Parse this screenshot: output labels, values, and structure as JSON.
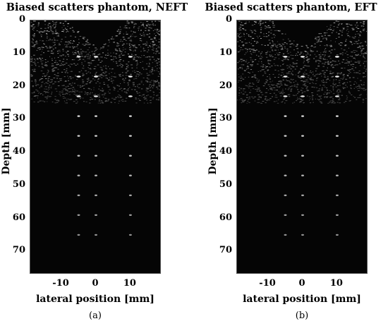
{
  "panels": [
    {
      "id": "a",
      "title": "Biased scatters phantom, NEFT",
      "ylabel": "Depth [mm]",
      "xlabel": "lateral position [mm]",
      "caption": "(a)"
    },
    {
      "id": "b",
      "title": "Biased scatters phantom, EFT",
      "ylabel": "Depth [mm]",
      "xlabel": "lateral position [mm]",
      "caption": "(b)"
    }
  ],
  "chart_data": [
    {
      "type": "heatmap",
      "title": "Biased scatters phantom, NEFT",
      "xlabel": "lateral position [mm]",
      "ylabel": "Depth [mm]",
      "xlim": [
        -19,
        19
      ],
      "ylim": [
        0,
        77
      ],
      "xticks": [
        "-10",
        "0",
        "10"
      ],
      "yticks": [
        "0",
        "10",
        "20",
        "30",
        "40",
        "50",
        "60",
        "70"
      ],
      "colormap": "gray",
      "point_targets_mm": {
        "lateral": [
          -5,
          0,
          10
        ],
        "depth": [
          11,
          17,
          23,
          29,
          35,
          41,
          47,
          53,
          59,
          65
        ]
      }
    },
    {
      "type": "heatmap",
      "title": "Biased scatters phantom, EFT",
      "xlabel": "lateral position [mm]",
      "ylabel": "Depth [mm]",
      "xlim": [
        -19,
        19
      ],
      "ylim": [
        0,
        77
      ],
      "xticks": [
        "-10",
        "0",
        "10"
      ],
      "yticks": [
        "0",
        "10",
        "20",
        "30",
        "40",
        "50",
        "60",
        "70"
      ],
      "colormap": "gray",
      "point_targets_mm": {
        "lateral": [
          -5,
          0,
          10
        ],
        "depth": [
          11,
          17,
          23,
          29,
          35,
          41,
          47,
          53,
          59,
          65
        ]
      }
    }
  ]
}
